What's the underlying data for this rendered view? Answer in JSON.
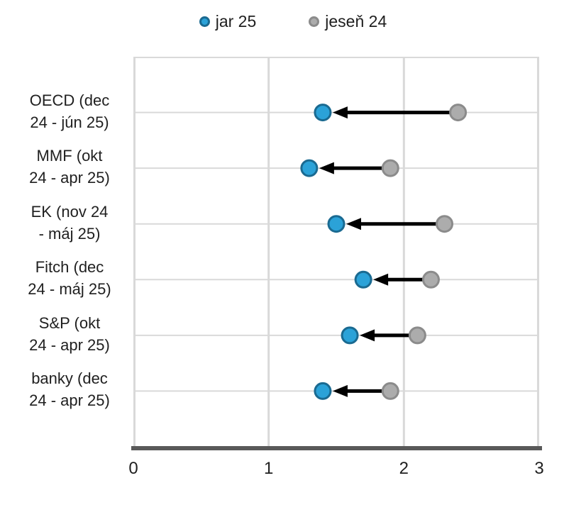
{
  "page": {
    "background": "#FFFFFF"
  },
  "legend": {
    "items": [
      {
        "label": "jar 25",
        "fill": "#2BA2D8",
        "ring": "#1A6A91"
      },
      {
        "label": "jeseň 24",
        "fill": "#ACACAC",
        "ring": "#8B8B8B"
      }
    ]
  },
  "chart_data": {
    "type": "scatter",
    "subtype": "dumbbell-arrow",
    "title": "",
    "xlabel": "",
    "ylabel": "",
    "xlim": [
      0,
      3
    ],
    "xticks": [
      "0",
      "1",
      "2",
      "3"
    ],
    "grid": true,
    "legend_position": "top",
    "categories": [
      "OECD (dec 24 - jún 25)",
      "MMF (okt 24 - apr 25)",
      "EK (nov 24 - máj 25)",
      "Fitch (dec 24 - máj 25)",
      "S&P (okt 24 - apr 25)",
      "banky (dec 24 - apr 25)"
    ],
    "category_label_lines": [
      [
        "OECD (dec",
        "24 - jún 25)"
      ],
      [
        "MMF (okt",
        "24 - apr 25)"
      ],
      [
        "EK (nov 24",
        "- máj 25)"
      ],
      [
        "Fitch (dec",
        "24 - máj 25)"
      ],
      [
        "S&P (okt",
        "24 - apr 25)"
      ],
      [
        "banky (dec",
        "24 - apr 25)"
      ]
    ],
    "series": [
      {
        "name": "jar 25",
        "values": [
          1.4,
          1.3,
          1.5,
          1.7,
          1.6,
          1.4
        ],
        "marker_fill": "#2BA2D8",
        "marker_ring": "#1A6A91"
      },
      {
        "name": "jeseň 24",
        "values": [
          2.4,
          1.9,
          2.3,
          2.2,
          2.1,
          1.9
        ],
        "marker_fill": "#ACACAC",
        "marker_ring": "#8B8B8B"
      }
    ],
    "annotations": "black arrows point from jeseň 24 value to jar 25 value in each row",
    "colors": {
      "gridline": "#D9D9D9",
      "axis_line": "#595959",
      "arrow": "#000000",
      "text": "#1F1F1F"
    }
  }
}
